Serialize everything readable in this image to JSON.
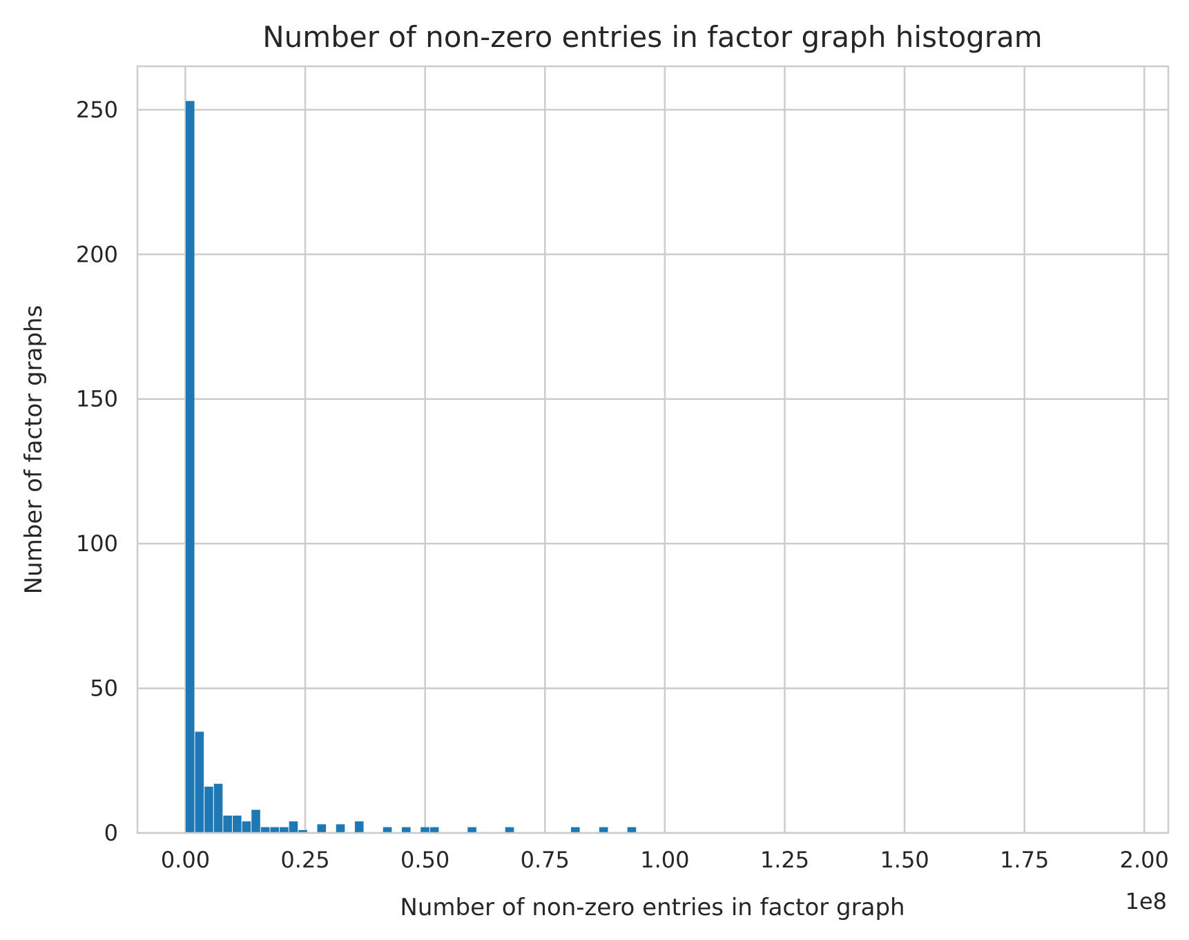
{
  "chart_data": {
    "type": "bar",
    "title": "Number of non-zero entries in factor graph histogram",
    "xlabel": "Number of non-zero entries in factor graph",
    "ylabel": "Number of factor graphs",
    "x_offset_label": "1e8",
    "xlim": [
      -0.1,
      2.05
    ],
    "ylim": [
      0,
      265
    ],
    "grid": true,
    "bar_color": "#1f77b4",
    "x_ticks": [
      0.0,
      0.25,
      0.5,
      0.75,
      1.0,
      1.25,
      1.5,
      1.75,
      2.0
    ],
    "x_tick_labels": [
      "0.00",
      "0.25",
      "0.50",
      "0.75",
      "1.00",
      "1.25",
      "1.50",
      "1.75",
      "2.00"
    ],
    "y_ticks": [
      0,
      50,
      100,
      150,
      200,
      250
    ],
    "y_tick_labels": [
      "0",
      "50",
      "100",
      "150",
      "200",
      "250"
    ],
    "bin_width": 0.0196,
    "bins": [
      {
        "x": 0.0098,
        "count": 253
      },
      {
        "x": 0.0294,
        "count": 35
      },
      {
        "x": 0.049,
        "count": 16
      },
      {
        "x": 0.0686,
        "count": 17
      },
      {
        "x": 0.0882,
        "count": 6
      },
      {
        "x": 0.1078,
        "count": 6
      },
      {
        "x": 0.1274,
        "count": 4
      },
      {
        "x": 0.147,
        "count": 8
      },
      {
        "x": 0.1666,
        "count": 2
      },
      {
        "x": 0.1862,
        "count": 2
      },
      {
        "x": 0.2058,
        "count": 2
      },
      {
        "x": 0.2254,
        "count": 4
      },
      {
        "x": 0.245,
        "count": 1
      },
      {
        "x": 0.2842,
        "count": 3
      },
      {
        "x": 0.3234,
        "count": 3
      },
      {
        "x": 0.3626,
        "count": 4
      },
      {
        "x": 0.4214,
        "count": 2
      },
      {
        "x": 0.4606,
        "count": 2
      },
      {
        "x": 0.4998,
        "count": 2
      },
      {
        "x": 0.5194,
        "count": 2
      },
      {
        "x": 0.5978,
        "count": 2
      },
      {
        "x": 0.6762,
        "count": 2
      },
      {
        "x": 0.8134,
        "count": 2
      },
      {
        "x": 0.8722,
        "count": 2
      },
      {
        "x": 0.931,
        "count": 2
      }
    ]
  }
}
